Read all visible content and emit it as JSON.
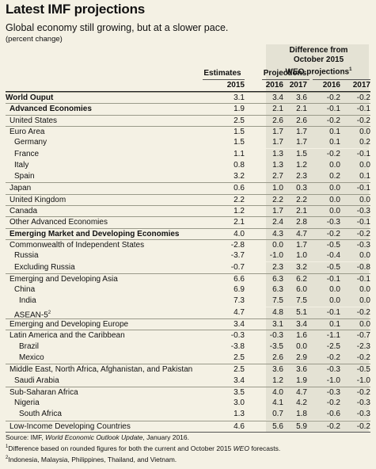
{
  "title": "Latest IMF projections",
  "subtitle": "Global economy still growing, but at a slower pace.",
  "unit_note": "(percent change)",
  "header": {
    "estimates": "Estimates",
    "projections": "Projections",
    "difference_line1": "Difference from",
    "difference_line2": "October 2015",
    "difference_line3": "WEO projections",
    "difference_sup": "1",
    "years": [
      "2015",
      "2016",
      "2017",
      "2016",
      "2017"
    ]
  },
  "rows": [
    {
      "label": "World Ouput",
      "indent": 0,
      "bold": true,
      "sep": true,
      "values": [
        "3.1",
        "3.4",
        "3.6",
        "-0.2",
        "-0.2"
      ]
    },
    {
      "label": "Advanced Economies",
      "indent": 1,
      "bold": true,
      "sep": true,
      "values": [
        "1.9",
        "2.1",
        "2.1",
        "-0.1",
        "-0.1"
      ]
    },
    {
      "label": "United States",
      "indent": 1,
      "sep": true,
      "values": [
        "2.5",
        "2.6",
        "2.6",
        "-0.2",
        "-0.2"
      ]
    },
    {
      "label": "Euro Area",
      "indent": 1,
      "sep": true,
      "values": [
        "1.5",
        "1.7",
        "1.7",
        "0.1",
        "0.0"
      ]
    },
    {
      "label": "Germany",
      "indent": 2,
      "values": [
        "1.5",
        "1.7",
        "1.7",
        "0.1",
        "0.2"
      ]
    },
    {
      "label": "France",
      "indent": 2,
      "values": [
        "1.1",
        "1.3",
        "1.5",
        "-0.2",
        "-0.1"
      ]
    },
    {
      "label": "Italy",
      "indent": 2,
      "values": [
        "0.8",
        "1.3",
        "1.2",
        "0.0",
        "0.0"
      ]
    },
    {
      "label": "Spain",
      "indent": 2,
      "values": [
        "3.2",
        "2.7",
        "2.3",
        "0.2",
        "0.1"
      ]
    },
    {
      "label": "Japan",
      "indent": 1,
      "sep": true,
      "values": [
        "0.6",
        "1.0",
        "0.3",
        "0.0",
        "-0.1"
      ]
    },
    {
      "label": "United Kingdom",
      "indent": 1,
      "sep": true,
      "values": [
        "2.2",
        "2.2",
        "2.2",
        "0.0",
        "0.0"
      ]
    },
    {
      "label": "Canada",
      "indent": 1,
      "sep": true,
      "values": [
        "1.2",
        "1.7",
        "2.1",
        "0.0",
        "-0.3"
      ]
    },
    {
      "label": "Other Advanced Economies",
      "indent": 1,
      "sep": true,
      "values": [
        "2.1",
        "2.4",
        "2.8",
        "-0.3",
        "-0.1"
      ]
    },
    {
      "label": "Emerging Market and Developing Economies",
      "indent": 1,
      "bold": true,
      "sep": true,
      "values": [
        "4.0",
        "4.3",
        "4.7",
        "-0.2",
        "-0.2"
      ]
    },
    {
      "label": "Commonwealth of Independent States",
      "indent": 1,
      "sep": true,
      "values": [
        "-2.8",
        "0.0",
        "1.7",
        "-0.5",
        "-0.3"
      ]
    },
    {
      "label": "Russia",
      "indent": 2,
      "values": [
        "-3.7",
        "-1.0",
        "1.0",
        "-0.4",
        "0.0"
      ]
    },
    {
      "label": "Excluding Russia",
      "indent": 2,
      "values": [
        "-0.7",
        "2.3",
        "3.2",
        "-0.5",
        "-0.8"
      ]
    },
    {
      "label": "Emerging and Developing Asia",
      "indent": 1,
      "sep": true,
      "values": [
        "6.6",
        "6.3",
        "6.2",
        "-0.1",
        "-0.1"
      ]
    },
    {
      "label": "China",
      "indent": 2,
      "values": [
        "6.9",
        "6.3",
        "6.0",
        "0.0",
        "0.0"
      ]
    },
    {
      "label": "India",
      "indent": 3,
      "values": [
        "7.3",
        "7.5",
        "7.5",
        "0.0",
        "0.0"
      ]
    },
    {
      "label": "ASEAN-5",
      "sup": "2",
      "indent": 2,
      "values": [
        "4.7",
        "4.8",
        "5.1",
        "-0.1",
        "-0.2"
      ]
    },
    {
      "label": "Emerging and Developing Europe",
      "indent": 1,
      "sep": true,
      "values": [
        "3.4",
        "3.1",
        "3.4",
        "0.1",
        "0.0"
      ]
    },
    {
      "label": "Latin America and the Caribbean",
      "indent": 1,
      "sep": true,
      "values": [
        "-0.3",
        "-0.3",
        "1.6",
        "-1.1",
        "-0.7"
      ]
    },
    {
      "label": "Brazil",
      "indent": 3,
      "values": [
        "-3.8",
        "-3.5",
        "0.0",
        "-2.5",
        "-2.3"
      ]
    },
    {
      "label": "Mexico",
      "indent": 3,
      "values": [
        "2.5",
        "2.6",
        "2.9",
        "-0.2",
        "-0.2"
      ]
    },
    {
      "label": "Middle East, North Africa, Afghanistan, and Pakistan",
      "indent": 1,
      "sep": true,
      "values": [
        "2.5",
        "3.6",
        "3.6",
        "-0.3",
        "-0.5"
      ]
    },
    {
      "label": "Saudi Arabia",
      "indent": 2,
      "values": [
        "3.4",
        "1.2",
        "1.9",
        "-1.0",
        "-1.0"
      ]
    },
    {
      "label": "Sub-Saharan Africa",
      "indent": 1,
      "sep": true,
      "values": [
        "3.5",
        "4.0",
        "4.7",
        "-0.3",
        "-0.2"
      ]
    },
    {
      "label": "Nigeria",
      "indent": 2,
      "values": [
        "3.0",
        "4.1",
        "4.2",
        "-0.2",
        "-0.3"
      ]
    },
    {
      "label": "South Africa",
      "indent": 3,
      "values": [
        "1.3",
        "0.7",
        "1.8",
        "-0.6",
        "-0.3"
      ]
    },
    {
      "label": "Low-Income Developing Countries",
      "indent": 1,
      "sep": true,
      "values": [
        "4.6",
        "5.6",
        "5.9",
        "-0.2",
        "-0.2"
      ]
    }
  ],
  "notes": {
    "source_prefix": "Source: IMF, ",
    "source_title": "World Economic Outlook Update",
    "source_suffix": ", January 2016.",
    "note1_num": "1",
    "note1_a": "Difference based on rounded figures for both the current and October 2015 ",
    "note1_weo": "WEO",
    "note1_b": " forecasts.",
    "note2_num": "2",
    "note2": "Indonesia, Malaysia, Philippines, Thailand, and Vietnam."
  },
  "colors": {
    "background": "#f4f1e4",
    "shade": "#e4e2d4",
    "text": "#111111"
  }
}
